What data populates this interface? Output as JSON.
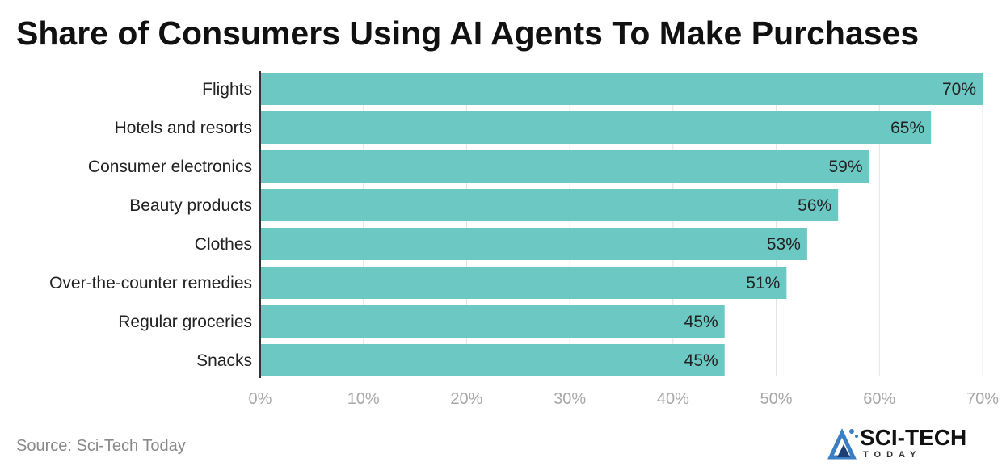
{
  "title": "Share of Consumers Using AI Agents To Make Purchases",
  "source": "Source: Sci-Tech Today",
  "logo": {
    "name": "SCI-TECH",
    "sub": "TODAY",
    "icon": "sci-tech-logo-icon"
  },
  "colors": {
    "bar": "#6cc8c2",
    "grid": "#e3e3e3",
    "axis": "#333333",
    "tick": "#a8a8a8",
    "label": "#222222"
  },
  "chart_data": {
    "type": "bar",
    "orientation": "horizontal",
    "categories": [
      "Flights",
      "Hotels and resorts",
      "Consumer electronics",
      "Beauty products",
      "Clothes",
      "Over-the-counter remedies",
      "Regular groceries",
      "Snacks"
    ],
    "values": [
      70,
      65,
      59,
      56,
      53,
      51,
      45,
      45
    ],
    "data_labels": [
      "70%",
      "65%",
      "59%",
      "56%",
      "53%",
      "51%",
      "45%",
      "45%"
    ],
    "xticks": [
      "0%",
      "10%",
      "20%",
      "30%",
      "40%",
      "50%",
      "60%",
      "70%"
    ],
    "xlim": [
      0,
      70
    ],
    "grid": true,
    "legend": "none"
  }
}
